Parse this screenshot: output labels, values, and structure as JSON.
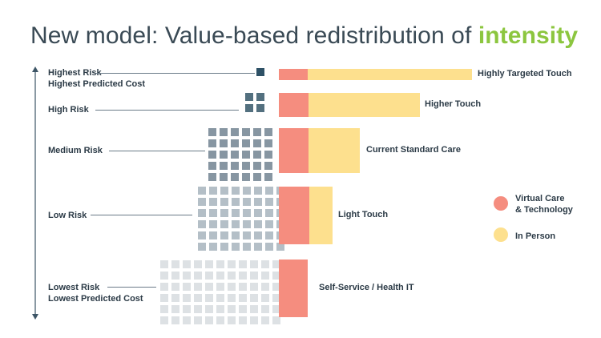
{
  "title": {
    "prefix": "New model: Value-based redistribution of ",
    "accent": "intensity"
  },
  "colors": {
    "virtual": "#f58d7f",
    "in_person": "#fde08e",
    "square_tiers": [
      "#2e5166",
      "#53707f",
      "#8796a2",
      "#b4bfc7",
      "#dde1e4"
    ],
    "axis": "#3d5566"
  },
  "tiers": [
    {
      "risk_label": [
        "Highest Risk",
        "Highest Predicted Cost"
      ],
      "grid_cols": 1,
      "grid_rows": 1,
      "virtual_share": 0.15,
      "intensity": 1.0,
      "bar_label": "Highly Targeted Touch"
    },
    {
      "risk_label": [
        "High Risk"
      ],
      "grid_cols": 2,
      "grid_rows": 2,
      "virtual_share": 0.21,
      "intensity": 0.73,
      "bar_label": "Higher Touch"
    },
    {
      "risk_label": [
        "Medium Risk"
      ],
      "grid_cols": 6,
      "grid_rows": 5,
      "virtual_share": 0.37,
      "intensity": 0.42,
      "bar_label": "Current Standard Care"
    },
    {
      "risk_label": [
        "Low Risk"
      ],
      "grid_cols": 8,
      "grid_rows": 6,
      "virtual_share": 0.56,
      "intensity": 0.28,
      "bar_label": "Light Touch"
    },
    {
      "risk_label": [
        "Lowest Risk",
        "Lowest Predicted Cost"
      ],
      "grid_cols": 11,
      "grid_rows": 6,
      "virtual_share": 1.0,
      "intensity": 0.15,
      "bar_label": "Self-Service / Health IT"
    }
  ],
  "legend": [
    {
      "label": [
        "Virtual Care",
        "& Technology"
      ],
      "color_key": "virtual"
    },
    {
      "label": [
        "In Person"
      ],
      "color_key": "in_person"
    }
  ]
}
